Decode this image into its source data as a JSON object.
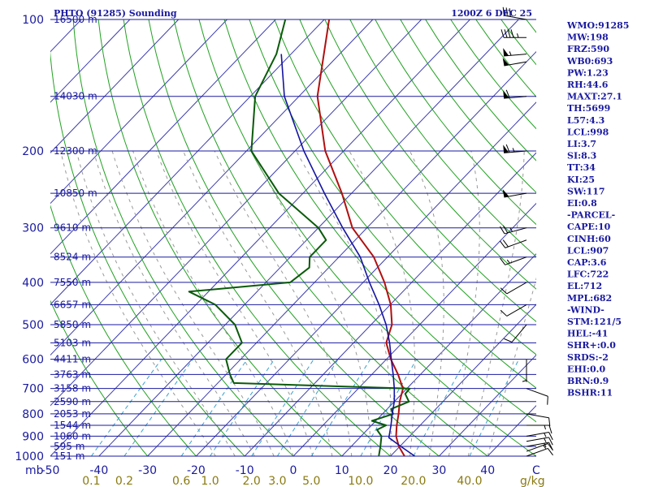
{
  "header": {
    "station": "PHTO (91285) Sounding",
    "time": "1200Z  6 DEC 25"
  },
  "colors": {
    "isobar": "#1a1aa0",
    "isotherm": "#3a3ab0",
    "dry_adiabat": "#22a022",
    "moist_adiabat": "#999999",
    "mixing_ratio": "#3aa0d0",
    "temperature": "#b01010",
    "dewpoint": "#0a5a0a",
    "parcel": "#1414a0",
    "wind_barb": "#000000",
    "mixing_ratio_label": "#8a7a10"
  },
  "chart_data": {
    "type": "skew-t log-p",
    "title": "PHTO (91285) Sounding",
    "valid_time": "1200Z  6 DEC 25",
    "pressure_axis": {
      "unit": "mb",
      "ticks": [
        100,
        200,
        300,
        400,
        500,
        600,
        700,
        800,
        900,
        1000
      ],
      "range": [
        100,
        1000
      ],
      "scale": "log"
    },
    "temperature_axis": {
      "unit": "C",
      "ticks": [
        -50,
        -40,
        -30,
        -20,
        -10,
        0,
        10,
        20,
        30,
        40
      ],
      "range": [
        -50,
        50
      ]
    },
    "mixing_ratio_axis": {
      "unit": "g/kg",
      "ticks": [
        "0.1",
        "0.2",
        "0.6",
        "1.0",
        "2.0",
        "3.0",
        "5.0",
        "10.0",
        "20.0",
        "40.0"
      ],
      "values": [
        0.1,
        0.2,
        0.6,
        1.0,
        2.0,
        3.0,
        5.0,
        10.0,
        20.0,
        40.0
      ]
    },
    "height_labels": [
      {
        "p": 100,
        "label": "16500 m"
      },
      {
        "p": 150,
        "label": "14030 m"
      },
      {
        "p": 200,
        "label": "12300 m"
      },
      {
        "p": 250,
        "label": "10850 m"
      },
      {
        "p": 300,
        "label": "9610 m"
      },
      {
        "p": 350,
        "label": "8524 m"
      },
      {
        "p": 400,
        "label": "7550 m"
      },
      {
        "p": 450,
        "label": "6657 m"
      },
      {
        "p": 500,
        "label": "5850 m"
      },
      {
        "p": 550,
        "label": "5103 m"
      },
      {
        "p": 600,
        "label": "4411 m"
      },
      {
        "p": 650,
        "label": "3763 m"
      },
      {
        "p": 700,
        "label": "3158 m"
      },
      {
        "p": 750,
        "label": "2590 m"
      },
      {
        "p": 800,
        "label": "2053 m"
      },
      {
        "p": 850,
        "label": "1544 m"
      },
      {
        "p": 900,
        "label": "1060 m"
      },
      {
        "p": 950,
        "label": "595 m"
      },
      {
        "p": 1000,
        "label": "151 m"
      }
    ],
    "series": [
      {
        "name": "Temperature",
        "points": [
          [
            1014,
            24.6
          ],
          [
            1000,
            22.9
          ],
          [
            950,
            19.8
          ],
          [
            900,
            17.2
          ],
          [
            850,
            15.2
          ],
          [
            800,
            13.3
          ],
          [
            750,
            11.1
          ],
          [
            700,
            9.2
          ],
          [
            650,
            5.4
          ],
          [
            600,
            0.9
          ],
          [
            550,
            -3.3
          ],
          [
            500,
            -5.7
          ],
          [
            450,
            -9.9
          ],
          [
            400,
            -15.6
          ],
          [
            350,
            -22.8
          ],
          [
            300,
            -33.0
          ],
          [
            250,
            -42.0
          ],
          [
            200,
            -53.8
          ],
          [
            150,
            -66.2
          ],
          [
            100,
            -79.0
          ]
        ]
      },
      {
        "name": "Dewpoint",
        "points": [
          [
            1014,
            18.6
          ],
          [
            1000,
            17.6
          ],
          [
            950,
            16.0
          ],
          [
            900,
            14.2
          ],
          [
            870,
            12.0
          ],
          [
            850,
            13.0
          ],
          [
            830,
            9.2
          ],
          [
            800,
            12.2
          ],
          [
            780,
            10.8
          ],
          [
            750,
            13.0
          ],
          [
            720,
            10.7
          ],
          [
            700,
            10.6
          ],
          [
            680,
            -26.7
          ],
          [
            650,
            -29.2
          ],
          [
            600,
            -33.0
          ],
          [
            550,
            -33.0
          ],
          [
            500,
            -38.0
          ],
          [
            450,
            -46.0
          ],
          [
            420,
            -54.0
          ],
          [
            400,
            -35.0
          ],
          [
            370,
            -34.0
          ],
          [
            350,
            -36.0
          ],
          [
            320,
            -36.0
          ],
          [
            300,
            -40.0
          ],
          [
            250,
            -55.0
          ],
          [
            200,
            -69.0
          ],
          [
            150,
            -79.0
          ],
          [
            120,
            -83.0
          ],
          [
            100,
            -88.0
          ]
        ]
      },
      {
        "name": "Parcel",
        "points": [
          [
            1000,
            25.0
          ],
          [
            950,
            20.2
          ],
          [
            907,
            16.0
          ],
          [
            850,
            14.0
          ],
          [
            800,
            12.0
          ],
          [
            750,
            10.0
          ],
          [
            700,
            7.4
          ],
          [
            650,
            4.4
          ],
          [
            600,
            1.0
          ],
          [
            550,
            -2.6
          ],
          [
            500,
            -6.9
          ],
          [
            450,
            -12.3
          ],
          [
            400,
            -18.7
          ],
          [
            350,
            -25.6
          ],
          [
            300,
            -35.0
          ],
          [
            250,
            -45.6
          ],
          [
            200,
            -58.2
          ],
          [
            150,
            -73.0
          ],
          [
            120,
            -82.0
          ]
        ]
      }
    ],
    "wind_barbs": [
      {
        "p": 1000,
        "dir": 70,
        "spd": 10
      },
      {
        "p": 975,
        "dir": 70,
        "spd": 15
      },
      {
        "p": 950,
        "dir": 80,
        "spd": 15
      },
      {
        "p": 925,
        "dir": 80,
        "spd": 15
      },
      {
        "p": 900,
        "dir": 80,
        "spd": 15
      },
      {
        "p": 850,
        "dir": 90,
        "spd": 15
      },
      {
        "p": 800,
        "dir": 100,
        "spd": 10
      },
      {
        "p": 700,
        "dir": 110,
        "spd": 10
      },
      {
        "p": 600,
        "dir": 180,
        "spd": 5
      },
      {
        "p": 500,
        "dir": 220,
        "spd": 10
      },
      {
        "p": 450,
        "dir": 240,
        "spd": 10
      },
      {
        "p": 400,
        "dir": 240,
        "spd": 10
      },
      {
        "p": 350,
        "dir": 250,
        "spd": 15
      },
      {
        "p": 320,
        "dir": 250,
        "spd": 20
      },
      {
        "p": 300,
        "dir": 255,
        "spd": 25
      },
      {
        "p": 250,
        "dir": 260,
        "spd": 50
      },
      {
        "p": 200,
        "dir": 265,
        "spd": 65
      },
      {
        "p": 150,
        "dir": 265,
        "spd": 60
      },
      {
        "p": 125,
        "dir": 260,
        "spd": 50
      },
      {
        "p": 120,
        "dir": 265,
        "spd": 55
      },
      {
        "p": 110,
        "dir": 270,
        "spd": 45
      },
      {
        "p": 100,
        "dir": 280,
        "spd": 30
      }
    ]
  },
  "indices": [
    "WMO:91285",
    "MW:198",
    "FRZ:590",
    "WB0:693",
    "PW:1.23",
    "RH:44.6",
    "MAXT:27.1",
    "TH:5699",
    "L57:4.3",
    "LCL:998",
    "LI:3.7",
    "SI:8.3",
    "TT:34",
    "KI:25",
    "SW:117",
    "EI:0.8",
    "-PARCEL-",
    "CAPE:10",
    "CINH:60",
    "LCL:907",
    "CAP:3.6",
    "LFC:722",
    "EL:712",
    "MPL:682",
    "-WIND-",
    "STM:121/5",
    "HEL:-41",
    "SHR+:0.0",
    "SRDS:-2",
    "EHI:0.0",
    "BRN:0.9",
    "BSHR:11"
  ]
}
